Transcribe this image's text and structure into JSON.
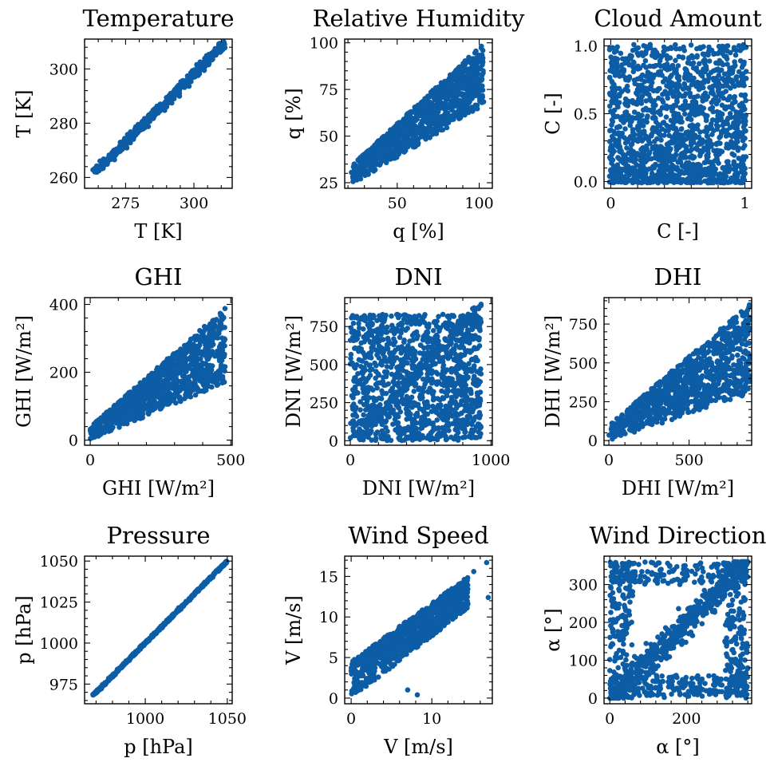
{
  "colors": {
    "marker": "#0C5DA5",
    "axis": "#000000",
    "background": "#FFFFFF"
  },
  "chart_data": [
    {
      "type": "scatter",
      "title": "Temperature",
      "xlabel": "T [K]",
      "ylabel": "T [K]",
      "xlim": [
        260,
        314
      ],
      "ylim": [
        256,
        311
      ],
      "xticks": [
        275,
        300
      ],
      "xtick_labels": [
        "275",
        "300"
      ],
      "yticks": [
        260,
        280,
        300
      ],
      "ytick_labels": [
        "260",
        "280",
        "300"
      ],
      "grid": false,
      "legend": "none",
      "cloud": {
        "kind": "band",
        "x_range": [
          264,
          311
        ],
        "y_at_xmin": 262,
        "y_at_xmax": 309,
        "spread": 3.5
      },
      "points": []
    },
    {
      "type": "scatter",
      "title": "Relative Humidity",
      "xlabel": "q [%]",
      "ylabel": "q [%]",
      "xlim": [
        18,
        108
      ],
      "ylim": [
        22,
        102
      ],
      "xticks": [
        50,
        100
      ],
      "xtick_labels": [
        "50",
        "100"
      ],
      "yticks": [
        25,
        50,
        75,
        100
      ],
      "ytick_labels": [
        "25",
        "50",
        "75",
        "100"
      ],
      "grid": false,
      "legend": "none",
      "cloud": {
        "kind": "wedge",
        "x_range": [
          22,
          103
        ],
        "upper_y": [
          34,
          100
        ],
        "lower_y": [
          24,
          66
        ],
        "cap": 100
      },
      "points": []
    },
    {
      "type": "scatter",
      "title": "Cloud Amount",
      "xlabel": "C [-]",
      "ylabel": "C [-]",
      "xlim": [
        -0.05,
        1.05
      ],
      "ylim": [
        -0.05,
        1.05
      ],
      "xticks": [
        0,
        1
      ],
      "xtick_labels": [
        "0",
        "1"
      ],
      "yticks": [
        0,
        0.5,
        1
      ],
      "ytick_labels": [
        "0.0",
        "0.5",
        "1.0"
      ],
      "grid": false,
      "legend": "none",
      "cloud": {
        "kind": "full",
        "x_range": [
          -0.01,
          1.01
        ],
        "y_range": [
          -0.01,
          1.01
        ]
      },
      "points": []
    },
    {
      "type": "scatter",
      "title": "GHI",
      "xlabel": "GHI [W/m²]",
      "ylabel": "GHI [W/m²]",
      "xlim": [
        -20,
        505
      ],
      "ylim": [
        -15,
        420
      ],
      "xticks": [
        0,
        500
      ],
      "xtick_labels": [
        "0",
        "500"
      ],
      "yticks": [
        0,
        200,
        400
      ],
      "ytick_labels": [
        "0",
        "200",
        "400"
      ],
      "grid": false,
      "legend": "none",
      "cloud": {
        "kind": "fan",
        "x_range": [
          0,
          480
        ],
        "upper_y": [
          40,
          390
        ],
        "lower_y": [
          0,
          170
        ],
        "cap": 395
      },
      "points": []
    },
    {
      "type": "scatter",
      "title": "DNI",
      "xlabel": "DNI [W/m²]",
      "ylabel": "DNI [W/m²]",
      "xlim": [
        -40,
        1010
      ],
      "ylim": [
        -30,
        940
      ],
      "xticks": [
        0,
        1000
      ],
      "xtick_labels": [
        "0",
        "1000"
      ],
      "yticks": [
        0,
        250,
        500,
        750
      ],
      "ytick_labels": [
        "0",
        "250",
        "500",
        "750"
      ],
      "grid": false,
      "legend": "none",
      "cloud": {
        "kind": "rect",
        "x_range": [
          0,
          930
        ],
        "y_range": [
          0,
          830
        ],
        "edge_upper": 900
      },
      "points": []
    },
    {
      "type": "scatter",
      "title": "DHI",
      "xlabel": "DHI [W/m²]",
      "ylabel": "DHI [W/m²]",
      "xlim": [
        -30,
        890
      ],
      "ylim": [
        -30,
        920
      ],
      "xticks": [
        0,
        500
      ],
      "xtick_labels": [
        "0",
        "500"
      ],
      "yticks": [
        0,
        250,
        500,
        750
      ],
      "ytick_labels": [
        "0",
        "250",
        "500",
        "750"
      ],
      "grid": false,
      "legend": "none",
      "cloud": {
        "kind": "wedge",
        "x_range": [
          0,
          880
        ],
        "upper_y": [
          100,
          880
        ],
        "lower_y": [
          0,
          300
        ],
        "cap": 880
      },
      "points": []
    },
    {
      "type": "scatter",
      "title": "Pressure",
      "xlabel": "p [hPa]",
      "ylabel": "p [hPa]",
      "xlim": [
        963,
        1053
      ],
      "ylim": [
        963,
        1053
      ],
      "xticks": [
        1000,
        1050
      ],
      "xtick_labels": [
        "1000",
        "1050"
      ],
      "yticks": [
        975,
        1000,
        1025,
        1050
      ],
      "ytick_labels": [
        "975",
        "1000",
        "1025",
        "1050"
      ],
      "grid": false,
      "legend": "none",
      "cloud": {
        "kind": "band",
        "x_range": [
          968,
          1050
        ],
        "y_at_xmin": 968,
        "y_at_xmax": 1050,
        "spread": 1.4
      },
      "points": []
    },
    {
      "type": "scatter",
      "title": "Wind Speed",
      "xlabel": "V [m/s]",
      "ylabel": "V [m/s]",
      "xlim": [
        -0.8,
        17.5
      ],
      "ylim": [
        -0.7,
        17.5
      ],
      "xticks": [
        0,
        10
      ],
      "xtick_labels": [
        "0",
        "10"
      ],
      "yticks": [
        0,
        5,
        10,
        15
      ],
      "ytick_labels": [
        "0",
        "5",
        "10",
        "15"
      ],
      "grid": false,
      "legend": "none",
      "cloud": {
        "kind": "wedge",
        "x_range": [
          0,
          14.5
        ],
        "upper_y": [
          4.5,
          15
        ],
        "lower_y": [
          0,
          11
        ],
        "cap": 15.5
      },
      "points": [
        [
          16.8,
          16.7
        ],
        [
          17.0,
          12.4
        ],
        [
          15.2,
          15.6
        ],
        [
          7.0,
          1.0
        ],
        [
          8.2,
          0.4
        ],
        [
          6.2,
          6.2
        ]
      ]
    },
    {
      "type": "scatter",
      "title": "Wind Direction",
      "xlabel": "α [°]",
      "ylabel": "α [°]",
      "xlim": [
        -15,
        370
      ],
      "ylim": [
        -15,
        375
      ],
      "xticks": [
        0,
        200
      ],
      "xtick_labels": [
        "0",
        "200"
      ],
      "yticks": [
        0,
        100,
        200,
        300
      ],
      "ytick_labels": [
        "0",
        "100",
        "200",
        "300"
      ],
      "grid": false,
      "legend": "none",
      "cloud": {
        "kind": "direction",
        "x_range": [
          0,
          360
        ],
        "y_range": [
          0,
          360
        ]
      },
      "points": []
    }
  ]
}
